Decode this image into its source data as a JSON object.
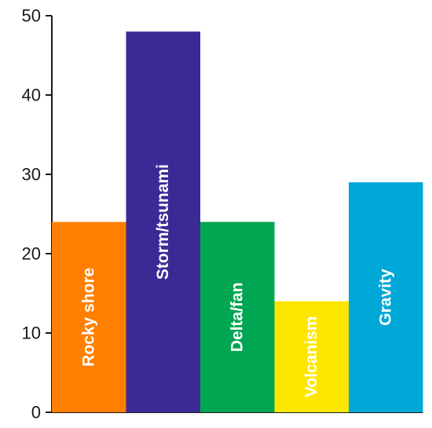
{
  "chart_data": {
    "type": "bar",
    "categories": [
      "Rocky shore",
      "Storm/tsunami",
      "Delta/fan",
      "Volcanism",
      "Gravity"
    ],
    "values": [
      24,
      48,
      24,
      14,
      29
    ],
    "colors": [
      "#ff7f00",
      "#3b2a96",
      "#00a651",
      "#ffe600",
      "#00a8d8"
    ],
    "title": "",
    "xlabel": "",
    "ylabel": "",
    "ylim": [
      0,
      50
    ],
    "yticks": [
      "0",
      "10",
      "20",
      "30",
      "40",
      "50"
    ],
    "grid": false,
    "legend": "none"
  }
}
